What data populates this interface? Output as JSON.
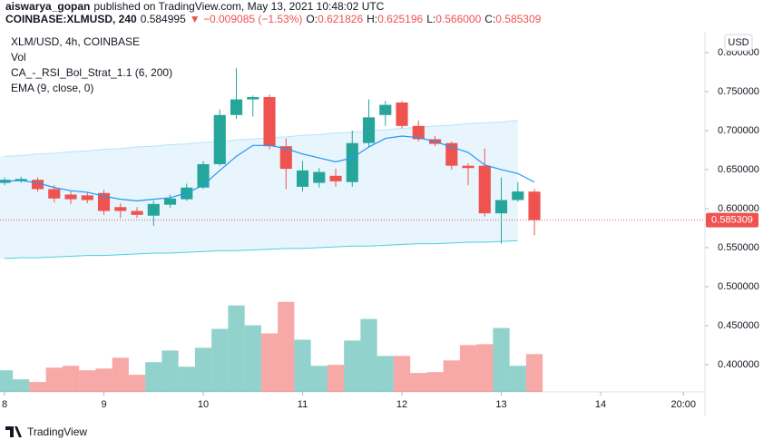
{
  "header": {
    "author": "aiswarya_gopan",
    "byline": "published on TradingView.com, May 13, 2021 10:48:02 UTC",
    "symbol": "COINBASE:XLMUSD, 240",
    "price": "0.584995",
    "change": "▼ −0.009085 (−1.53%)",
    "ohlc": [
      {
        "key": "O:",
        "value": "0.621826"
      },
      {
        "key": "H:",
        "value": "0.625196"
      },
      {
        "key": "L:",
        "value": "0.566000"
      },
      {
        "key": "C:",
        "value": "0.585309"
      }
    ]
  },
  "chart_data": {
    "type": "candlestick",
    "title": "XLM/USD, 4h, COINBASE",
    "currency": "USD",
    "up_color": "#26a69a",
    "down_color": "#ef5350",
    "x": [
      0,
      4,
      8,
      12,
      16,
      20,
      24,
      28,
      32,
      36,
      40,
      44,
      48,
      52,
      56,
      60,
      64,
      68,
      72,
      76,
      80,
      84,
      88,
      92,
      96,
      100,
      104,
      108,
      112,
      116,
      120,
      124,
      128
    ],
    "open": [
      0.633,
      0.636,
      0.637,
      0.625,
      0.618,
      0.617,
      0.62,
      0.602,
      0.597,
      0.591,
      0.605,
      0.612,
      0.627,
      0.657,
      0.72,
      0.74,
      0.743,
      0.68,
      0.628,
      0.633,
      0.642,
      0.634,
      0.684,
      0.72,
      0.736,
      0.706,
      0.689,
      0.684,
      0.655,
      0.655,
      0.594,
      0.611,
      0.621826
    ],
    "high": [
      0.64,
      0.641,
      0.64,
      0.63,
      0.622,
      0.621,
      0.624,
      0.607,
      0.602,
      0.61,
      0.618,
      0.632,
      0.661,
      0.727,
      0.78,
      0.745,
      0.746,
      0.69,
      0.661,
      0.652,
      0.651,
      0.7,
      0.74,
      0.738,
      0.738,
      0.713,
      0.693,
      0.686,
      0.658,
      0.677,
      0.64,
      0.634,
      0.625196
    ],
    "low": [
      0.63,
      0.633,
      0.622,
      0.608,
      0.606,
      0.607,
      0.592,
      0.588,
      0.588,
      0.578,
      0.601,
      0.61,
      0.625,
      0.655,
      0.715,
      0.718,
      0.676,
      0.625,
      0.622,
      0.627,
      0.628,
      0.628,
      0.679,
      0.706,
      0.703,
      0.686,
      0.68,
      0.65,
      0.63,
      0.59,
      0.555,
      0.609,
      0.566
    ],
    "close": [
      0.637,
      0.638,
      0.625,
      0.613,
      0.612,
      0.611,
      0.597,
      0.597,
      0.592,
      0.606,
      0.613,
      0.627,
      0.657,
      0.72,
      0.74,
      0.743,
      0.68,
      0.651,
      0.649,
      0.647,
      0.635,
      0.684,
      0.717,
      0.733,
      0.706,
      0.689,
      0.683,
      0.655,
      0.652,
      0.594,
      0.611,
      0.622,
      0.585309
    ],
    "volume": {
      "name": "Vol",
      "values": [
        24,
        14,
        11,
        27,
        29,
        24,
        26,
        38,
        19,
        33,
        46,
        28,
        49,
        70,
        96,
        74,
        65,
        100,
        58,
        29,
        30,
        57,
        81,
        40,
        40,
        21,
        22,
        35,
        52,
        53,
        71,
        29,
        42
      ],
      "ylim": [
        0,
        400
      ]
    },
    "series": [
      {
        "name": "CA_-_RSI_Bol_Strat_1.1 (6, 200)",
        "color": "#4dd0e1",
        "upper_color": "#b3e5fc",
        "fill": "#e3f2fd",
        "upper": [
          0.667,
          0.668,
          0.67,
          0.671,
          0.673,
          0.674,
          0.676,
          0.677,
          0.679,
          0.68,
          0.682,
          0.683,
          0.685,
          0.686,
          0.688,
          0.689,
          0.691,
          0.692,
          0.694,
          0.695,
          0.697,
          0.698,
          0.7,
          0.701,
          0.703,
          0.704,
          0.706,
          0.707,
          0.709,
          0.71,
          0.711,
          0.713,
          null
        ],
        "lower": [
          0.536,
          0.537,
          0.537,
          0.538,
          0.539,
          0.54,
          0.54,
          0.541,
          0.542,
          0.543,
          0.543,
          0.544,
          0.545,
          0.546,
          0.546,
          0.547,
          0.548,
          0.549,
          0.549,
          0.55,
          0.551,
          0.552,
          0.552,
          0.553,
          0.554,
          0.555,
          0.555,
          0.556,
          0.557,
          0.557,
          0.558,
          0.559,
          null
        ]
      },
      {
        "name": "EMA (9, close, 0)",
        "color": "#2196f3",
        "values": [
          0.635,
          0.636,
          0.633,
          0.627,
          0.623,
          0.621,
          0.616,
          0.612,
          0.61,
          0.612,
          0.614,
          0.62,
          0.63,
          0.649,
          0.667,
          0.681,
          0.681,
          0.677,
          0.67,
          0.665,
          0.66,
          0.665,
          0.679,
          0.69,
          0.693,
          0.691,
          0.686,
          0.679,
          0.672,
          0.656,
          0.65,
          0.645,
          0.634
        ]
      }
    ],
    "last_price": 0.585309,
    "ylim": [
      0.3651,
      0.8267
    ],
    "yticks": [
      {
        "value": 0.8,
        "label": "0.800000"
      },
      {
        "value": 0.75,
        "label": "0.750000"
      },
      {
        "value": 0.7,
        "label": "0.700000"
      },
      {
        "value": 0.65,
        "label": "0.650000"
      },
      {
        "value": 0.6,
        "label": "0.600000"
      },
      {
        "value": 0.55,
        "label": "0.550000"
      },
      {
        "value": 0.5,
        "label": "0.500000"
      },
      {
        "value": 0.45,
        "label": "0.450000"
      },
      {
        "value": 0.4,
        "label": "0.400000"
      }
    ],
    "xlim": [
      -1.1,
      169.2
    ],
    "xticks": [
      {
        "value": 0,
        "label": "8"
      },
      {
        "value": 24,
        "label": "9"
      },
      {
        "value": 48,
        "label": "10"
      },
      {
        "value": 72,
        "label": "11"
      },
      {
        "value": 96,
        "label": "12"
      },
      {
        "value": 120,
        "label": "13"
      },
      {
        "value": 144,
        "label": "14"
      },
      {
        "value": 164,
        "label": "20:00"
      }
    ]
  },
  "footer": {
    "brand": "TradingView"
  }
}
